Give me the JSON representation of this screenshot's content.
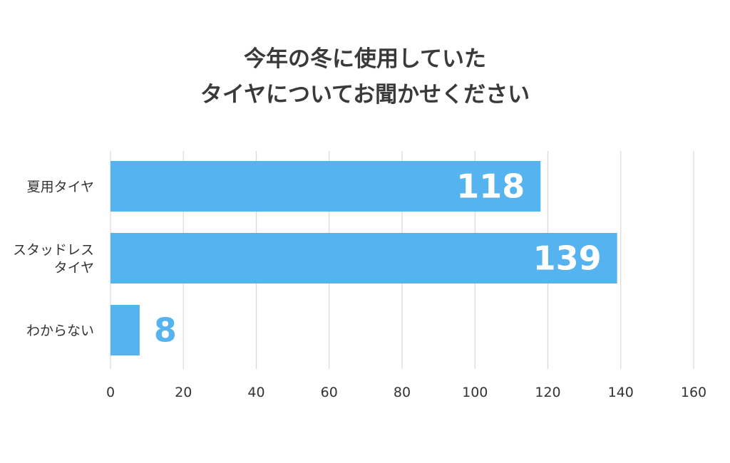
{
  "chart_data": {
    "type": "bar",
    "orientation": "horizontal",
    "title_lines": [
      "今年の冬に使用していた",
      "タイヤについてお聞かせください"
    ],
    "categories": [
      {
        "lines": [
          "夏用タイヤ"
        ]
      },
      {
        "lines": [
          "スタッドレス",
          "タイヤ"
        ]
      },
      {
        "lines": [
          "わからない"
        ]
      }
    ],
    "values": [
      118,
      139,
      8
    ],
    "value_labels": [
      "118",
      "139",
      "8"
    ],
    "xlim": [
      0,
      160
    ],
    "xticks": [
      "0",
      "20",
      "40",
      "60",
      "80",
      "100",
      "120",
      "140",
      "160"
    ],
    "grid": true,
    "bar_color": "#55b4f0",
    "label_inside_color": "#ffffff",
    "label_outside_color": "#55b4f0",
    "grid_color": "#d8d8d8"
  }
}
